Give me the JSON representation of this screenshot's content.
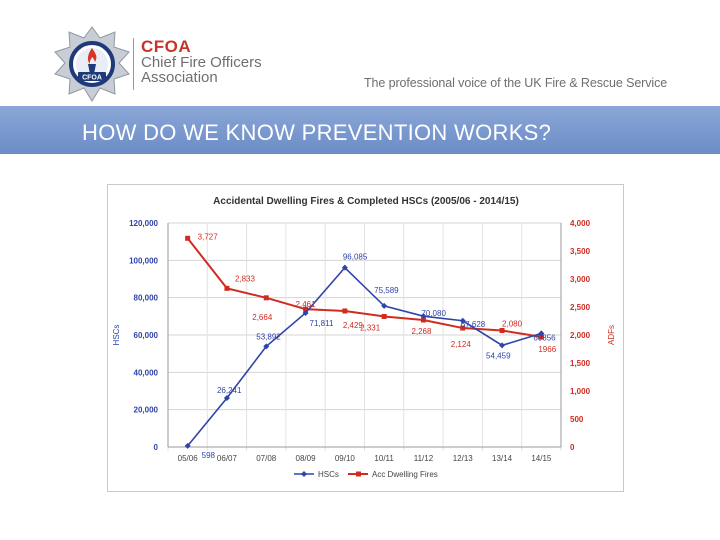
{
  "header": {
    "abbr": "CFOA",
    "name_line1": "Chief Fire Officers",
    "name_line2": "Association",
    "logo_text": "CFOA",
    "tagline": "The professional voice of the UK Fire & Rescue Service"
  },
  "banner": {
    "title": "HOW DO WE KNOW PREVENTION WORKS?"
  },
  "colors": {
    "hscs": "#2e44a8",
    "adfs": "#d12b20",
    "banner": "#7896cd",
    "brand": "#c8342b"
  },
  "chart_data": {
    "type": "line",
    "title": "Accidental Dwelling Fires & Completed HSCs (2005/06 - 2014/15)",
    "categories": [
      "05/06",
      "06/07",
      "07/08",
      "08/09",
      "09/10",
      "10/11",
      "11/12",
      "12/13",
      "13/14",
      "14/15"
    ],
    "ylabel_left": "HSCs",
    "ylabel_right": "ADFs",
    "ylim_left": [
      0,
      120000
    ],
    "ylim_right": [
      0,
      4000
    ],
    "yticks_left": [
      "0",
      "20,000",
      "40,000",
      "60,000",
      "80,000",
      "100,000",
      "120,000"
    ],
    "yticks_right": [
      "0",
      "500",
      "1,000",
      "1,500",
      "2,000",
      "2,500",
      "3,000",
      "3,500",
      "4,000"
    ],
    "grid": "horizontal",
    "legend": "bottom",
    "series": [
      {
        "name": "HSCs",
        "axis": "left",
        "values": [
          598,
          26241,
          53892,
          71811,
          96085,
          75589,
          70080,
          67628,
          54459,
          60856
        ],
        "labels": [
          "598",
          "26,241",
          "53,892",
          "71,811",
          "96,085",
          "75,589",
          "70,080",
          "67,628",
          "54,459",
          "60856"
        ]
      },
      {
        "name": "Acc Dwelling Fires",
        "axis": "right",
        "values": [
          3727,
          2833,
          2664,
          2461,
          2429,
          2331,
          2268,
          2124,
          2080,
          1966
        ],
        "labels": [
          "3,727",
          "2,833",
          "2,664",
          "2,461",
          "2,429",
          "2,331",
          "2,268",
          "2,124",
          "2,080",
          "1966"
        ]
      }
    ]
  }
}
